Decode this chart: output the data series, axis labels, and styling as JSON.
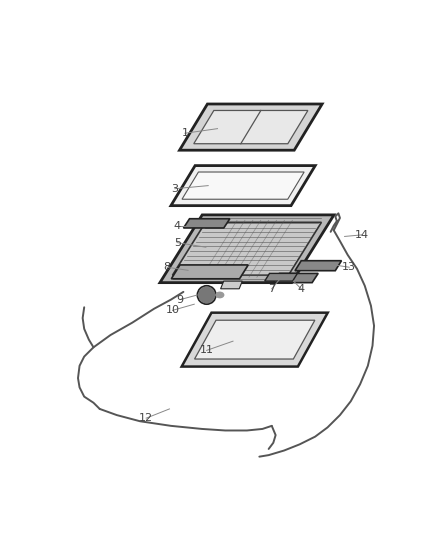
{
  "bg_color": "#ffffff",
  "fig_width": 4.38,
  "fig_height": 5.33,
  "dpi": 100,
  "lc": "#888888",
  "tc": "#444444",
  "dark": "#222222",
  "mid": "#666666",
  "light_fill": "#e8e8e8",
  "frame_fill": "#c0c0c0"
}
